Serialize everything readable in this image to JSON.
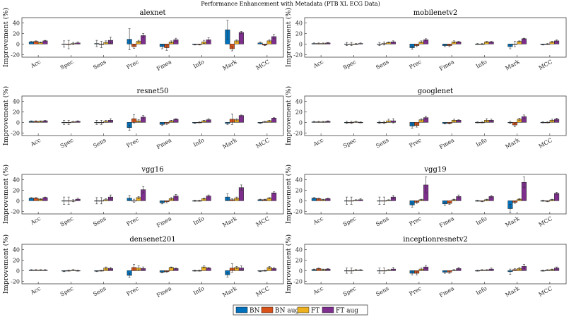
{
  "chart_data": {
    "type": "bar",
    "title": "Performance Enhancement with Metadata (PTB XL ECG Data)",
    "ylabel": "Improvement (%)",
    "ylim": [
      -25,
      50
    ],
    "yticks": [
      -20,
      0,
      20,
      40
    ],
    "categories": [
      "Acc",
      "Spec",
      "Sens",
      "Prec",
      "Fmea",
      "Info",
      "Mark",
      "MCC"
    ],
    "legend": {
      "position": "bottom-center",
      "entries": [
        {
          "name": "BN",
          "color": "#0072BD"
        },
        {
          "name": "BN aug",
          "color": "#D95319"
        },
        {
          "name": "FT",
          "color": "#EDB120"
        },
        {
          "name": "FT aug",
          "color": "#7E2F8E"
        }
      ]
    },
    "panels": [
      {
        "title": "alexnet",
        "values": [
          [
            4,
            5,
            3,
            6
          ],
          [
            0,
            -1,
            1,
            2
          ],
          [
            1,
            -1,
            3,
            7
          ],
          [
            9,
            -5,
            5,
            16
          ],
          [
            -5,
            -7,
            4,
            8
          ],
          [
            -1,
            -1,
            4,
            8
          ],
          [
            27,
            -9,
            6,
            22
          ],
          [
            2,
            -2,
            6,
            14
          ]
        ],
        "errors": [
          [
            1,
            1,
            1,
            1
          ],
          [
            6,
            8,
            2,
            2
          ],
          [
            6,
            6,
            3,
            6
          ],
          [
            20,
            3,
            2,
            4
          ],
          [
            4,
            5,
            2,
            3
          ],
          [
            1,
            1,
            3,
            4
          ],
          [
            18,
            4,
            2,
            2
          ],
          [
            2,
            1,
            2,
            4
          ]
        ]
      },
      {
        "title": "mobilenetv2",
        "values": [
          [
            1,
            1,
            1,
            2
          ],
          [
            0,
            0,
            0,
            1
          ],
          [
            0,
            1,
            3,
            4
          ],
          [
            -7,
            -3,
            4,
            8
          ],
          [
            -3,
            -3,
            4,
            4
          ],
          [
            0,
            0,
            4,
            4
          ],
          [
            -5,
            0,
            5,
            10
          ],
          [
            -1,
            0,
            4,
            6
          ]
        ],
        "errors": [
          [
            1,
            1,
            1,
            1
          ],
          [
            3,
            3,
            1,
            1
          ],
          [
            3,
            3,
            1,
            2
          ],
          [
            3,
            2,
            2,
            2
          ],
          [
            2,
            2,
            2,
            1
          ],
          [
            1,
            1,
            1,
            1
          ],
          [
            4,
            5,
            1,
            1
          ],
          [
            1,
            1,
            1,
            2
          ]
        ]
      },
      {
        "title": "resnet50",
        "values": [
          [
            2,
            2,
            2,
            3
          ],
          [
            0,
            0,
            1,
            2
          ],
          [
            0,
            0,
            2,
            4
          ],
          [
            -10,
            7,
            3,
            10
          ],
          [
            -4,
            -2,
            3,
            6
          ],
          [
            -1,
            0,
            3,
            5
          ],
          [
            -2,
            6,
            5,
            13
          ],
          [
            -1,
            1,
            3,
            8
          ]
        ],
        "errors": [
          [
            1,
            1,
            1,
            1
          ],
          [
            4,
            4,
            1,
            1
          ],
          [
            4,
            4,
            2,
            3
          ],
          [
            5,
            8,
            2,
            3
          ],
          [
            2,
            2,
            1,
            1
          ],
          [
            1,
            1,
            1,
            2
          ],
          [
            2,
            10,
            2,
            1
          ],
          [
            1,
            1,
            1,
            1
          ]
        ]
      },
      {
        "title": "googlenet",
        "values": [
          [
            1,
            1,
            1,
            2
          ],
          [
            0,
            0,
            1,
            0
          ],
          [
            0,
            0,
            3,
            3
          ],
          [
            -7,
            -6,
            5,
            9
          ],
          [
            -2,
            -2,
            4,
            4
          ],
          [
            0,
            0,
            4,
            4
          ],
          [
            0,
            -5,
            6,
            11
          ],
          [
            0,
            0,
            4,
            6
          ]
        ],
        "errors": [
          [
            1,
            1,
            1,
            1
          ],
          [
            2,
            2,
            1,
            1
          ],
          [
            2,
            2,
            3,
            4
          ],
          [
            4,
            3,
            2,
            3
          ],
          [
            1,
            1,
            2,
            1
          ],
          [
            1,
            1,
            3,
            2
          ],
          [
            2,
            3,
            2,
            3
          ],
          [
            1,
            1,
            2,
            2
          ]
        ]
      },
      {
        "title": "vgg16",
        "values": [
          [
            5,
            5,
            3,
            6
          ],
          [
            0,
            0,
            0,
            3
          ],
          [
            0,
            0,
            2,
            7
          ],
          [
            5,
            0,
            6,
            21
          ],
          [
            -4,
            -2,
            4,
            9
          ],
          [
            0,
            0,
            4,
            9
          ],
          [
            7,
            2,
            5,
            25
          ],
          [
            2,
            2,
            5,
            15
          ]
        ],
        "errors": [
          [
            1,
            1,
            1,
            1
          ],
          [
            7,
            7,
            2,
            2
          ],
          [
            6,
            6,
            2,
            4
          ],
          [
            5,
            3,
            2,
            6
          ],
          [
            2,
            2,
            2,
            3
          ],
          [
            1,
            1,
            1,
            2
          ],
          [
            6,
            2,
            2,
            5
          ],
          [
            1,
            1,
            1,
            2
          ]
        ]
      },
      {
        "title": "vgg19",
        "values": [
          [
            5,
            4,
            2,
            4
          ],
          [
            0,
            0,
            1,
            2
          ],
          [
            0,
            0,
            1,
            7
          ],
          [
            -8,
            -3,
            2,
            30
          ],
          [
            -6,
            -5,
            2,
            8
          ],
          [
            0,
            -1,
            2,
            8
          ],
          [
            -15,
            -3,
            3,
            35
          ],
          [
            0,
            -1,
            2,
            14
          ]
        ],
        "errors": [
          [
            1,
            1,
            1,
            1
          ],
          [
            7,
            7,
            1,
            2
          ],
          [
            7,
            7,
            1,
            3
          ],
          [
            4,
            2,
            1,
            15
          ],
          [
            3,
            2,
            1,
            3
          ],
          [
            1,
            1,
            1,
            2
          ],
          [
            8,
            2,
            1,
            10
          ],
          [
            1,
            1,
            1,
            2
          ]
        ]
      },
      {
        "title": "densenet201",
        "values": [
          [
            1,
            1,
            1,
            1
          ],
          [
            -1,
            0,
            1,
            0
          ],
          [
            -1,
            0,
            5,
            4
          ],
          [
            -9,
            6,
            5,
            4
          ],
          [
            -3,
            -2,
            6,
            4
          ],
          [
            0,
            0,
            7,
            5
          ],
          [
            -8,
            5,
            6,
            5
          ],
          [
            -1,
            0,
            6,
            4
          ]
        ],
        "errors": [
          [
            1,
            1,
            1,
            1
          ],
          [
            1,
            1,
            1,
            1
          ],
          [
            1,
            1,
            2,
            2
          ],
          [
            4,
            6,
            4,
            3
          ],
          [
            1,
            1,
            1,
            1
          ],
          [
            1,
            1,
            2,
            1
          ],
          [
            4,
            8,
            2,
            4
          ],
          [
            1,
            1,
            2,
            2
          ]
        ]
      },
      {
        "title": "inceptionresnetv2",
        "values": [
          [
            2,
            4,
            2,
            3
          ],
          [
            0,
            0,
            1,
            1
          ],
          [
            0,
            0,
            1,
            3
          ],
          [
            -5,
            -5,
            3,
            7
          ],
          [
            -3,
            -3,
            1,
            4
          ],
          [
            0,
            1,
            1,
            3
          ],
          [
            -2,
            2,
            4,
            8
          ],
          [
            0,
            1,
            2,
            5
          ]
        ],
        "errors": [
          [
            1,
            1,
            1,
            1
          ],
          [
            5,
            5,
            1,
            1
          ],
          [
            5,
            5,
            1,
            3
          ],
          [
            3,
            3,
            2,
            3
          ],
          [
            2,
            2,
            1,
            2
          ],
          [
            1,
            1,
            1,
            2
          ],
          [
            5,
            2,
            2,
            4
          ],
          [
            1,
            1,
            1,
            2
          ]
        ]
      }
    ]
  }
}
